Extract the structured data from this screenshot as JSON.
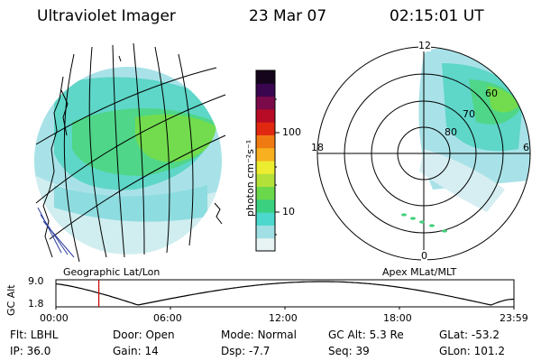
{
  "header": {
    "instrument": "Ultraviolet Imager",
    "date": "23 Mar 07",
    "time": "02:15:01 UT"
  },
  "left_panel": {
    "caption": "Geographic Lat/Lon"
  },
  "right_panel": {
    "caption": "Apex MLat/MLT",
    "mlt_labels": [
      "12",
      "18",
      "6",
      "0"
    ],
    "mlat_labels": [
      "60",
      "70",
      "80"
    ]
  },
  "colorbar": {
    "unit_label": "photon cm⁻²s⁻¹",
    "ticks": [
      "100",
      "10"
    ],
    "scale": "log",
    "colors": [
      "#e8f4f4",
      "#a0e0e4",
      "#4cd8cc",
      "#3ad080",
      "#6ad84a",
      "#b4e03a",
      "#ecec30",
      "#f8b020",
      "#f07a12",
      "#e02810",
      "#b80c26",
      "#7a0a4a",
      "#3a0650",
      "#14041c"
    ]
  },
  "altitude_plot": {
    "ylabel": "GC Alt",
    "yticks": [
      "9.0",
      "1.8"
    ],
    "xticks": [
      "00:00",
      "06:00",
      "12:00",
      "18:00",
      "23:59"
    ],
    "current_time_hours": 2.25,
    "marker_color": "#cc0000"
  },
  "footer": {
    "row1": [
      {
        "key": "Flt:",
        "val": "LBHL"
      },
      {
        "key": "Door:",
        "val": "Open"
      },
      {
        "key": "Mode:",
        "val": "Normal"
      },
      {
        "key": "GC Alt:",
        "val": "5.3 Re"
      },
      {
        "key": "GLat:",
        "val": "-53.2"
      }
    ],
    "row2": [
      {
        "key": "IP:",
        "val": "36.0"
      },
      {
        "key": "Gain:",
        "val": "14"
      },
      {
        "key": "Dsp:",
        "val": "-7.7"
      },
      {
        "key": "Seq:",
        "val": "39"
      },
      {
        "key": "GLon:",
        "val": "101.2"
      }
    ]
  }
}
